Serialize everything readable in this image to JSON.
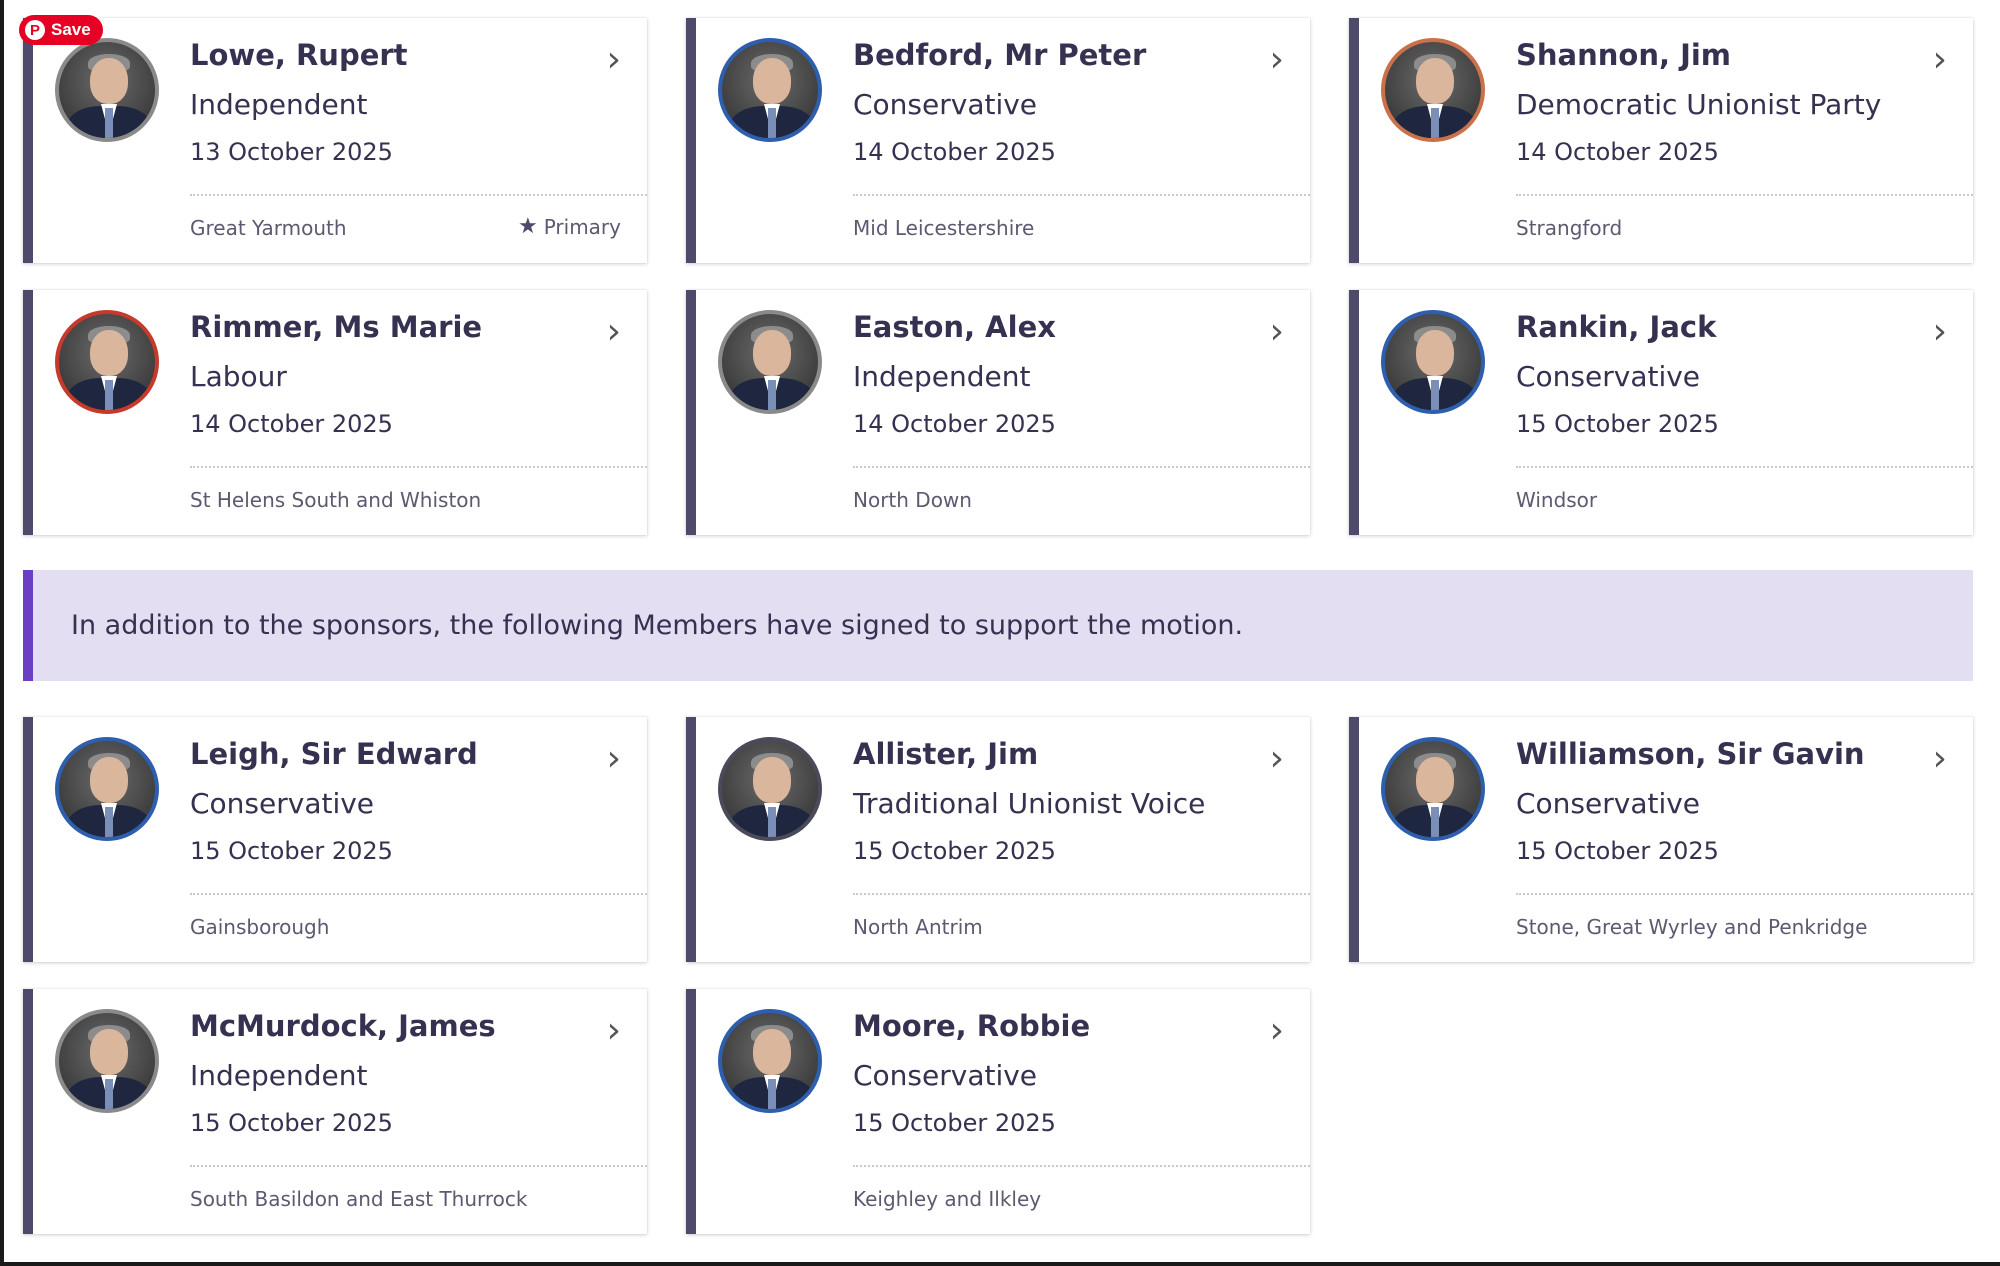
{
  "pin_button": {
    "label": "Save",
    "icon": "pinterest-icon"
  },
  "notice": {
    "text": "In addition to the sponsors, the following Members have signed to support the motion."
  },
  "sponsors": [
    {
      "name": "Lowe, Rupert",
      "party": "Independent",
      "date": "13 October 2025",
      "constituency": "Great Yarmouth",
      "primary_label": "Primary",
      "ring": "#8a8a8a"
    },
    {
      "name": "Bedford, Mr Peter",
      "party": "Conservative",
      "date": "14 October 2025",
      "constituency": "Mid Leicestershire",
      "ring": "#2e5fae"
    },
    {
      "name": "Shannon, Jim",
      "party": "Democratic Unionist Party",
      "date": "14 October 2025",
      "constituency": "Strangford",
      "ring": "#c8714a"
    },
    {
      "name": "Rimmer, Ms Marie",
      "party": "Labour",
      "date": "14 October 2025",
      "constituency": "St Helens South and Whiston",
      "ring": "#c63a2c"
    },
    {
      "name": "Easton, Alex",
      "party": "Independent",
      "date": "14 October 2025",
      "constituency": "North Down",
      "ring": "#8a8a8a"
    },
    {
      "name": "Rankin, Jack",
      "party": "Conservative",
      "date": "15 October 2025",
      "constituency": "Windsor",
      "ring": "#2e5fae"
    }
  ],
  "supporters": [
    {
      "name": "Leigh, Sir Edward",
      "party": "Conservative",
      "date": "15 October 2025",
      "constituency": "Gainsborough",
      "ring": "#2e5fae"
    },
    {
      "name": "Allister, Jim",
      "party": "Traditional Unionist Voice",
      "date": "15 October 2025",
      "constituency": "North Antrim",
      "ring": "#4a4a5a"
    },
    {
      "name": "Williamson, Sir Gavin",
      "party": "Conservative",
      "date": "15 October 2025",
      "constituency": "Stone, Great Wyrley and Penkridge",
      "ring": "#2e5fae"
    },
    {
      "name": "McMurdock, James",
      "party": "Independent",
      "date": "15 October 2025",
      "constituency": "South Basildon and East Thurrock",
      "ring": "#8a8a8a"
    },
    {
      "name": "Moore, Robbie",
      "party": "Conservative",
      "date": "15 October 2025",
      "constituency": "Keighley and Ilkley",
      "ring": "#2e5fae"
    }
  ],
  "icons": {
    "chevron": "chevron-right-icon",
    "star": "star-icon"
  },
  "colors": {
    "card_bar": "#4d4a6b",
    "notice_bg": "#e4def2",
    "notice_bar": "#6b3fc4",
    "save_red": "#e60023"
  }
}
